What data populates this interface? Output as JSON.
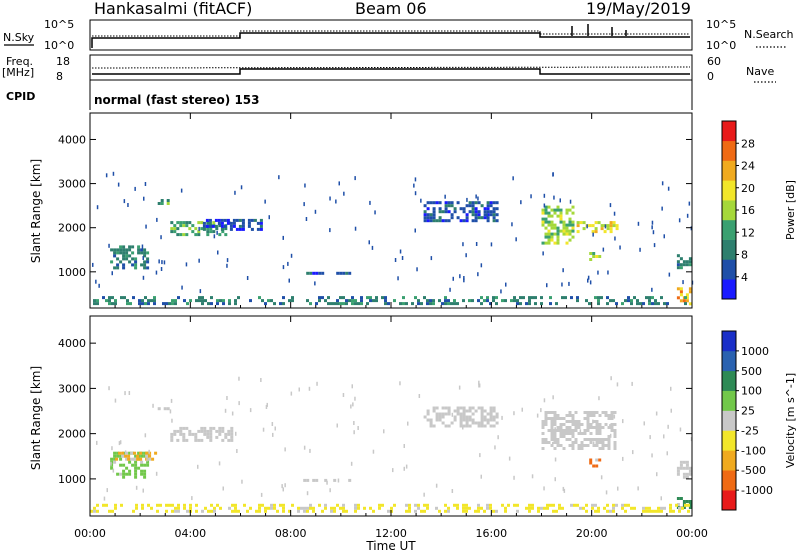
{
  "header": {
    "station": "Hankasalmi (fitACF)",
    "beam": "Beam 06",
    "date": "19/May/2019"
  },
  "panels": {
    "nsky": {
      "left_label": "N.Sky",
      "right_label": "N.Search",
      "left_ticks": [
        "10^5",
        "10^0"
      ],
      "right_ticks": [
        "10^5",
        "10^0"
      ]
    },
    "freq": {
      "left_label_1": "Freq.",
      "left_label_2": "[MHz]",
      "right_label": "Nave",
      "left_ticks": [
        "18",
        "8"
      ],
      "right_ticks": [
        "60",
        "0"
      ]
    },
    "cpid": {
      "label": "CPID",
      "text": "normal (fast stereo) 153"
    }
  },
  "chart_data": [
    {
      "type": "heatmap",
      "title": "Power",
      "ylabel": "Slant Range [km]",
      "xlabel": "",
      "xlim": [
        "00:00",
        "24:00"
      ],
      "ylim": [
        180,
        4600
      ],
      "x_tick_labels": [
        "00:00",
        "04:00",
        "08:00",
        "12:00",
        "16:00",
        "20:00",
        "00:00"
      ],
      "y_tick_labels": [
        "1000",
        "2000",
        "3000",
        "4000"
      ],
      "colorbar": {
        "label": "Power [dB]",
        "range": [
          0,
          32
        ],
        "ticks": [
          "4",
          "8",
          "12",
          "16",
          "20",
          "24",
          "28"
        ],
        "colors": [
          "#1a1aff",
          "#1f4fa8",
          "#2e7f6e",
          "#3aa070",
          "#a5d83a",
          "#f2e62a",
          "#f0aa1f",
          "#ef6a14",
          "#e81a1a"
        ]
      },
      "regions": [
        {
          "t": [
            0.8,
            2.4
          ],
          "r": [
            1000,
            1600
          ],
          "level": 6
        },
        {
          "t": [
            2.7,
            3.2
          ],
          "r": [
            2500,
            2650
          ],
          "level": 9
        },
        {
          "t": [
            3.2,
            5.8
          ],
          "r": [
            1800,
            2150
          ],
          "level": 11
        },
        {
          "t": [
            4.5,
            7.0
          ],
          "r": [
            1900,
            2200
          ],
          "level": 5
        },
        {
          "t": [
            8.5,
            10.5
          ],
          "r": [
            950,
            1000
          ],
          "level": 5
        },
        {
          "t": [
            13.3,
            16.3
          ],
          "r": [
            2100,
            2600
          ],
          "level": 5
        },
        {
          "t": [
            18.0,
            19.4
          ],
          "r": [
            1600,
            2500
          ],
          "level": 14
        },
        {
          "t": [
            19.4,
            21.1
          ],
          "r": [
            1850,
            2150
          ],
          "level": 18
        },
        {
          "t": [
            19.9,
            20.4
          ],
          "r": [
            1200,
            1450
          ],
          "level": 15
        },
        {
          "t": [
            23.4,
            24.0
          ],
          "r": [
            1000,
            1400
          ],
          "level": 7
        },
        {
          "t": [
            23.4,
            24.0
          ],
          "r": [
            200,
            650
          ],
          "level": 22
        },
        {
          "t": [
            0.0,
            24.0
          ],
          "r": [
            200,
            450
          ],
          "level": 6
        }
      ]
    },
    {
      "type": "heatmap",
      "title": "Velocity",
      "ylabel": "Slant Range [km]",
      "xlabel": "Time UT",
      "xlim": [
        "00:00",
        "24:00"
      ],
      "ylim": [
        180,
        4600
      ],
      "x_tick_labels": [
        "00:00",
        "04:00",
        "08:00",
        "12:00",
        "16:00",
        "20:00",
        "00:00"
      ],
      "y_tick_labels": [
        "1000",
        "2000",
        "3000",
        "4000"
      ],
      "colorbar": {
        "label": "Velocity [m s^-1]",
        "ticks": [
          "1000",
          "500",
          "100",
          "25",
          "-25",
          "-100",
          "-500",
          "-1000"
        ],
        "colors": [
          "#1a2fc8",
          "#2a62b0",
          "#2e8a55",
          "#72c84a",
          "#c8c8c8",
          "#f2e62a",
          "#f0aa1f",
          "#ef6a14",
          "#e81a1a"
        ]
      },
      "regions": [
        {
          "t": [
            0.8,
            2.4
          ],
          "r": [
            1000,
            1600
          ],
          "vel": 25
        },
        {
          "t": [
            1.0,
            2.7
          ],
          "r": [
            1350,
            1600
          ],
          "vel": -300
        },
        {
          "t": [
            2.7,
            3.2
          ],
          "r": [
            2500,
            2650
          ],
          "vel": 0
        },
        {
          "t": [
            3.2,
            5.8
          ],
          "r": [
            1800,
            2150
          ],
          "vel": 0
        },
        {
          "t": [
            8.5,
            10.5
          ],
          "r": [
            950,
            1000
          ],
          "vel": 0
        },
        {
          "t": [
            13.3,
            16.3
          ],
          "r": [
            2100,
            2600
          ],
          "vel": 0
        },
        {
          "t": [
            18.0,
            21.1
          ],
          "r": [
            1600,
            2500
          ],
          "vel": 0
        },
        {
          "t": [
            19.9,
            20.4
          ],
          "r": [
            1200,
            1450
          ],
          "vel": -700
        },
        {
          "t": [
            23.4,
            24.0
          ],
          "r": [
            1000,
            1400
          ],
          "vel": 0
        },
        {
          "t": [
            23.4,
            24.0
          ],
          "r": [
            300,
            600
          ],
          "vel": 100
        },
        {
          "t": [
            0.0,
            24.0
          ],
          "r": [
            200,
            450
          ],
          "vel": -60
        }
      ]
    }
  ]
}
